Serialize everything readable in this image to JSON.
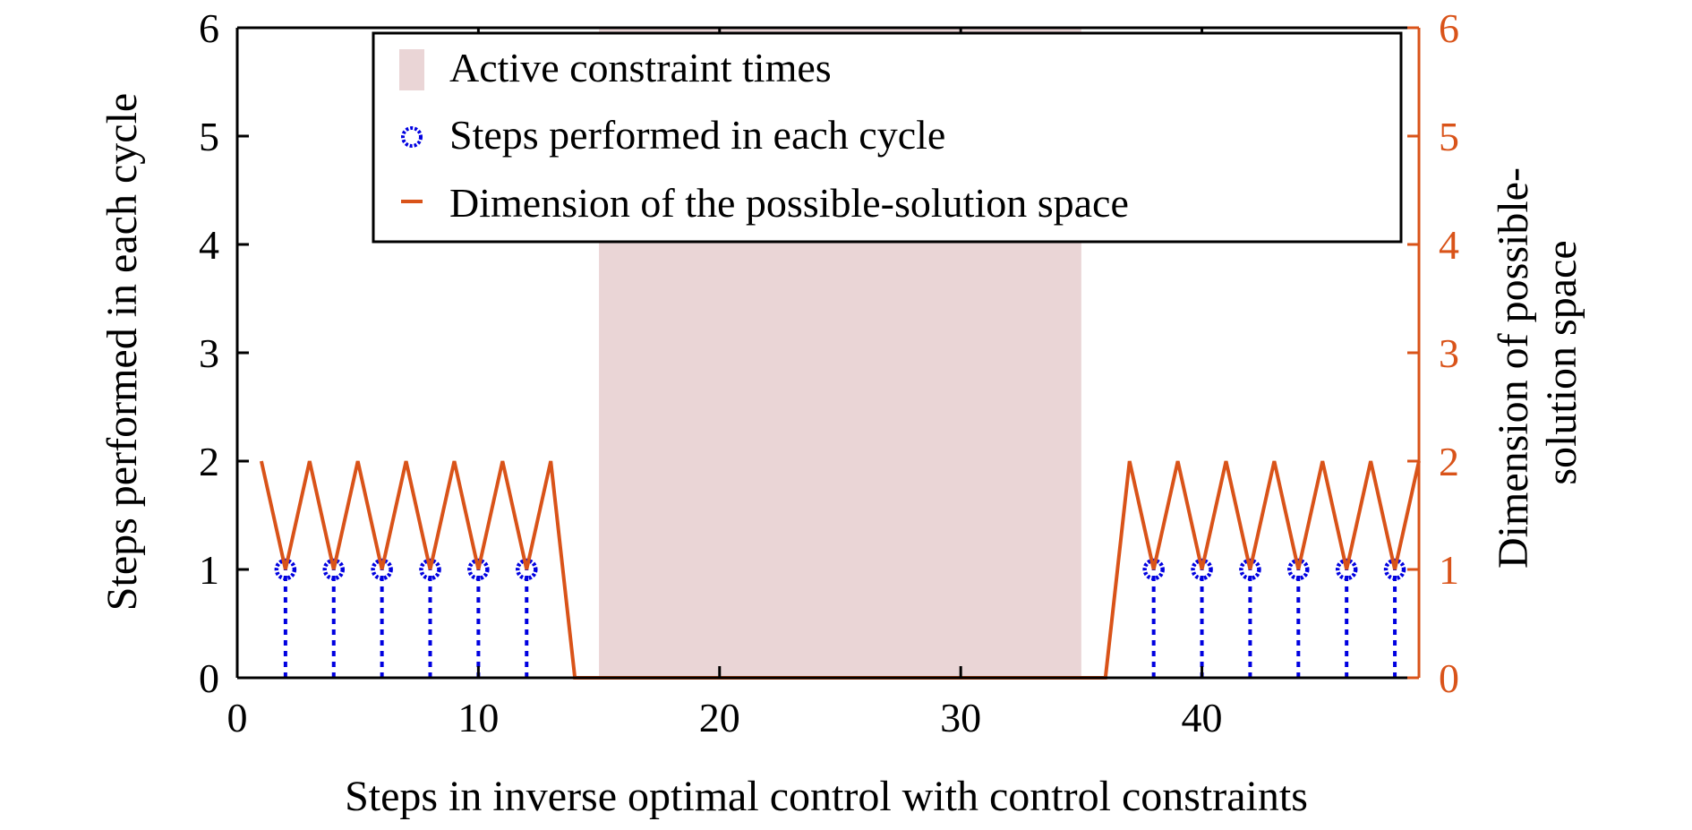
{
  "chart_data": {
    "type": "line",
    "xlabel": "Steps in inverse optimal control with control constraints",
    "ylabel_left": "Steps performed in each cycle",
    "ylabel_right_lines": [
      "Dimension of possible-",
      "solution space"
    ],
    "xlim": [
      0,
      49
    ],
    "ylim_left": [
      0,
      6
    ],
    "ylim_right": [
      0,
      6
    ],
    "x_ticks": [
      0,
      10,
      20,
      30,
      40
    ],
    "y_ticks_left": [
      0,
      1,
      2,
      3,
      4,
      5,
      6
    ],
    "y_ticks_right": [
      0,
      1,
      2,
      3,
      4,
      5,
      6
    ],
    "grid": false,
    "legend_position": "top-center",
    "colors": {
      "constraint": "#ead5d6",
      "steps": "#0000e0",
      "dimension": "#d95319",
      "axis": "#000000"
    },
    "active_constraint_interval": [
      15,
      35
    ],
    "series": [
      {
        "name": "Steps performed in each cycle",
        "kind": "stem",
        "axis": "left",
        "x": [
          2,
          4,
          6,
          8,
          10,
          12,
          38,
          40,
          42,
          44,
          46,
          48
        ],
        "y": [
          1,
          1,
          1,
          1,
          1,
          1,
          1,
          1,
          1,
          1,
          1,
          1
        ]
      },
      {
        "name": "Dimension of the possible-solution space",
        "kind": "line",
        "axis": "right",
        "x": [
          1,
          2,
          3,
          4,
          5,
          6,
          7,
          8,
          9,
          10,
          11,
          12,
          13,
          14,
          15,
          16,
          17,
          18,
          19,
          20,
          21,
          22,
          23,
          24,
          25,
          26,
          27,
          28,
          29,
          30,
          31,
          32,
          33,
          34,
          35,
          36,
          37,
          38,
          39,
          40,
          41,
          42,
          43,
          44,
          45,
          46,
          47,
          48,
          49
        ],
        "y": [
          2,
          1,
          2,
          1,
          2,
          1,
          2,
          1,
          2,
          1,
          2,
          1,
          2,
          0,
          0,
          0,
          0,
          0,
          0,
          0,
          0,
          0,
          0,
          0,
          0,
          0,
          0,
          0,
          0,
          0,
          0,
          0,
          0,
          0,
          0,
          0,
          2,
          1,
          2,
          1,
          2,
          1,
          2,
          1,
          2,
          1,
          2,
          1,
          2
        ]
      }
    ],
    "legend": [
      {
        "label": "Active constraint times",
        "symbol": "patch"
      },
      {
        "label": "Steps performed in each cycle",
        "symbol": "circle"
      },
      {
        "label": "Dimension of the possible-solution space",
        "symbol": "line"
      }
    ]
  }
}
